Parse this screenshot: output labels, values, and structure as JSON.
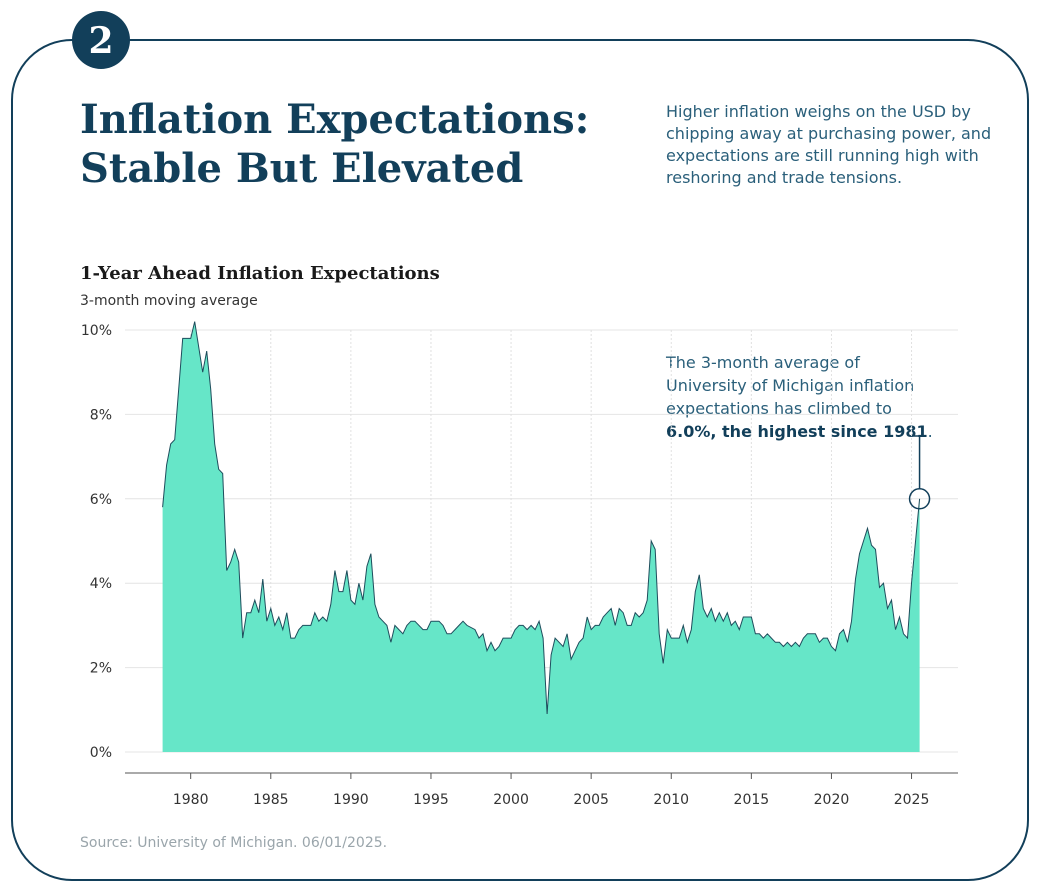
{
  "badge": "2",
  "title_lines": [
    "Inflation Expectations:",
    "Stable But Elevated"
  ],
  "description_lines": [
    "Higher inflation weighs on the USD by",
    "chipping away at purchasing power, and",
    "expectations are still running high with",
    "reshoring and trade tensions."
  ],
  "source": "Source: University of Michigan. 06/01/2025.",
  "chart_data": {
    "type": "area",
    "title": "1-Year Ahead Inflation Expectations",
    "subtitle": "3-month moving average",
    "color": "#66e6c8",
    "line_color": "#1e4d5c",
    "grid": true,
    "x": [
      1978.25,
      1978.5,
      1978.75,
      1979.0,
      1979.25,
      1979.5,
      1979.75,
      1980.0,
      1980.25,
      1980.5,
      1980.75,
      1981.0,
      1981.25,
      1981.5,
      1981.75,
      1982.0,
      1982.25,
      1982.5,
      1982.75,
      1983.0,
      1983.25,
      1983.5,
      1983.75,
      1984.0,
      1984.25,
      1984.5,
      1984.75,
      1985.0,
      1985.25,
      1985.5,
      1985.75,
      1986.0,
      1986.25,
      1986.5,
      1986.75,
      1987.0,
      1987.5,
      1987.75,
      1988.0,
      1988.25,
      1988.5,
      1988.75,
      1989.0,
      1989.25,
      1989.5,
      1989.75,
      1990.0,
      1990.25,
      1990.5,
      1990.75,
      1991.0,
      1991.25,
      1991.5,
      1991.75,
      1992.0,
      1992.25,
      1992.5,
      1992.75,
      1993.0,
      1993.25,
      1993.5,
      1993.75,
      1994.0,
      1994.5,
      1994.75,
      1995.0,
      1995.5,
      1995.75,
      1996.0,
      1996.25,
      1996.5,
      1996.75,
      1997.0,
      1997.25,
      1997.75,
      1998.0,
      1998.25,
      1998.5,
      1998.75,
      1999.0,
      1999.25,
      1999.5,
      1999.75,
      2000.0,
      2000.25,
      2000.5,
      2000.75,
      2001.0,
      2001.25,
      2001.5,
      2001.75,
      2002.0,
      2002.25,
      2002.5,
      2002.75,
      2003.0,
      2003.25,
      2003.5,
      2003.75,
      2004.0,
      2004.25,
      2004.5,
      2004.75,
      2005.0,
      2005.25,
      2005.5,
      2005.75,
      2006.0,
      2006.25,
      2006.5,
      2006.75,
      2007.0,
      2007.25,
      2007.5,
      2007.75,
      2008.0,
      2008.25,
      2008.5,
      2008.75,
      2009.0,
      2009.25,
      2009.5,
      2009.75,
      2010.0,
      2010.25,
      2010.5,
      2010.75,
      2011.0,
      2011.25,
      2011.5,
      2011.75,
      2012.0,
      2012.25,
      2012.5,
      2012.75,
      2013.0,
      2013.25,
      2013.5,
      2013.75,
      2014.0,
      2014.25,
      2014.5,
      2014.75,
      2015.0,
      2015.25,
      2015.5,
      2015.75,
      2016.0,
      2016.25,
      2016.5,
      2016.75,
      2017.0,
      2017.25,
      2017.5,
      2017.75,
      2018.0,
      2018.25,
      2018.5,
      2018.75,
      2019.0,
      2019.25,
      2019.5,
      2019.75,
      2020.0,
      2020.25,
      2020.5,
      2020.75,
      2021.0,
      2021.25,
      2021.5,
      2021.75,
      2022.0,
      2022.25,
      2022.5,
      2022.75,
      2023.0,
      2023.25,
      2023.5,
      2023.75,
      2024.0,
      2024.25,
      2024.5,
      2024.75,
      2025.0,
      2025.5
    ],
    "values": [
      5.8,
      6.8,
      7.3,
      7.4,
      8.6,
      9.8,
      9.8,
      9.8,
      10.2,
      9.6,
      9.0,
      9.5,
      8.6,
      7.3,
      6.7,
      6.6,
      4.3,
      4.5,
      4.8,
      4.5,
      2.7,
      3.3,
      3.3,
      3.6,
      3.3,
      4.1,
      3.1,
      3.4,
      3.0,
      3.2,
      2.9,
      3.3,
      2.7,
      2.7,
      2.9,
      3.0,
      3.0,
      3.3,
      3.1,
      3.2,
      3.1,
      3.5,
      4.3,
      3.8,
      3.8,
      4.3,
      3.6,
      3.5,
      4.0,
      3.6,
      4.4,
      4.7,
      3.5,
      3.2,
      3.1,
      3.0,
      2.6,
      3.0,
      2.9,
      2.8,
      3.0,
      3.1,
      3.1,
      2.9,
      2.9,
      3.1,
      3.1,
      3.0,
      2.8,
      2.8,
      2.9,
      3.0,
      3.1,
      3.0,
      2.9,
      2.7,
      2.8,
      2.4,
      2.6,
      2.4,
      2.5,
      2.7,
      2.7,
      2.7,
      2.9,
      3.0,
      3.0,
      2.9,
      3.0,
      2.9,
      3.1,
      2.7,
      0.9,
      2.3,
      2.7,
      2.6,
      2.5,
      2.8,
      2.2,
      2.4,
      2.6,
      2.7,
      3.2,
      2.9,
      3.0,
      3.0,
      3.2,
      3.3,
      3.4,
      3.0,
      3.4,
      3.3,
      3.0,
      3.0,
      3.3,
      3.2,
      3.3,
      3.6,
      5.0,
      4.8,
      2.8,
      2.1,
      2.9,
      2.7,
      2.7,
      2.7,
      3.0,
      2.6,
      2.9,
      3.8,
      4.2,
      3.4,
      3.2,
      3.4,
      3.1,
      3.3,
      3.1,
      3.3,
      3.0,
      3.1,
      2.9,
      3.2,
      3.2,
      3.2,
      2.8,
      2.8,
      2.7,
      2.8,
      2.7,
      2.6,
      2.6,
      2.5,
      2.6,
      2.5,
      2.6,
      2.5,
      2.7,
      2.8,
      2.8,
      2.8,
      2.6,
      2.7,
      2.7,
      2.5,
      2.4,
      2.8,
      2.9,
      2.6,
      3.1,
      4.1,
      4.7,
      5.0,
      5.3,
      4.9,
      4.8,
      3.9,
      4.0,
      3.4,
      3.6,
      2.9,
      3.2,
      2.8,
      2.7,
      4.0,
      6.0
    ],
    "xlim": [
      1975.9,
      2027.9
    ],
    "xticks": [
      1980,
      1985,
      1990,
      1995,
      2000,
      2005,
      2010,
      2015,
      2020,
      2025
    ],
    "ylim": [
      0,
      10
    ],
    "yticks": [
      {
        "value": 0,
        "label": "0%"
      },
      {
        "value": 2,
        "label": "2%"
      },
      {
        "value": 4,
        "label": "4%"
      },
      {
        "value": 6,
        "label": "6%"
      },
      {
        "value": 8,
        "label": "8%"
      },
      {
        "value": 10,
        "label": "10%"
      }
    ],
    "annotation": {
      "lines": [
        "The 3-month average of",
        "University of Michigan inflation",
        "expectations has climbed to"
      ],
      "highlight": "6.0%, the highest since 1981",
      "end": "."
    }
  }
}
